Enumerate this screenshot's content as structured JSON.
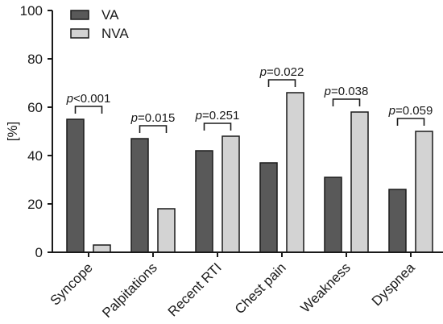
{
  "chart_data": {
    "type": "bar",
    "ylabel": "[%]",
    "ylim": [
      0,
      100
    ],
    "yticks": [
      0,
      20,
      40,
      60,
      80,
      100
    ],
    "legend_position": "top-left",
    "categories": [
      "Syncope",
      "Palpitations",
      "Recent RTI",
      "Chest pain",
      "Weakness",
      "Dyspnea"
    ],
    "series": [
      {
        "name": "VA",
        "color": "#595959",
        "values": [
          55,
          47,
          42,
          37,
          31,
          26
        ]
      },
      {
        "name": "NVA",
        "color": "#d3d3d3",
        "values": [
          3,
          18,
          48,
          66,
          58,
          50
        ]
      }
    ],
    "annotations": [
      {
        "p": "p",
        "rest": "<0.001"
      },
      {
        "p": "p",
        "rest": "=0.015"
      },
      {
        "p": "p",
        "rest": "=0.251"
      },
      {
        "p": "p",
        "rest": "=0.022"
      },
      {
        "p": "p",
        "rest": "=0.038"
      },
      {
        "p": "p",
        "rest": "=0.059"
      }
    ]
  }
}
